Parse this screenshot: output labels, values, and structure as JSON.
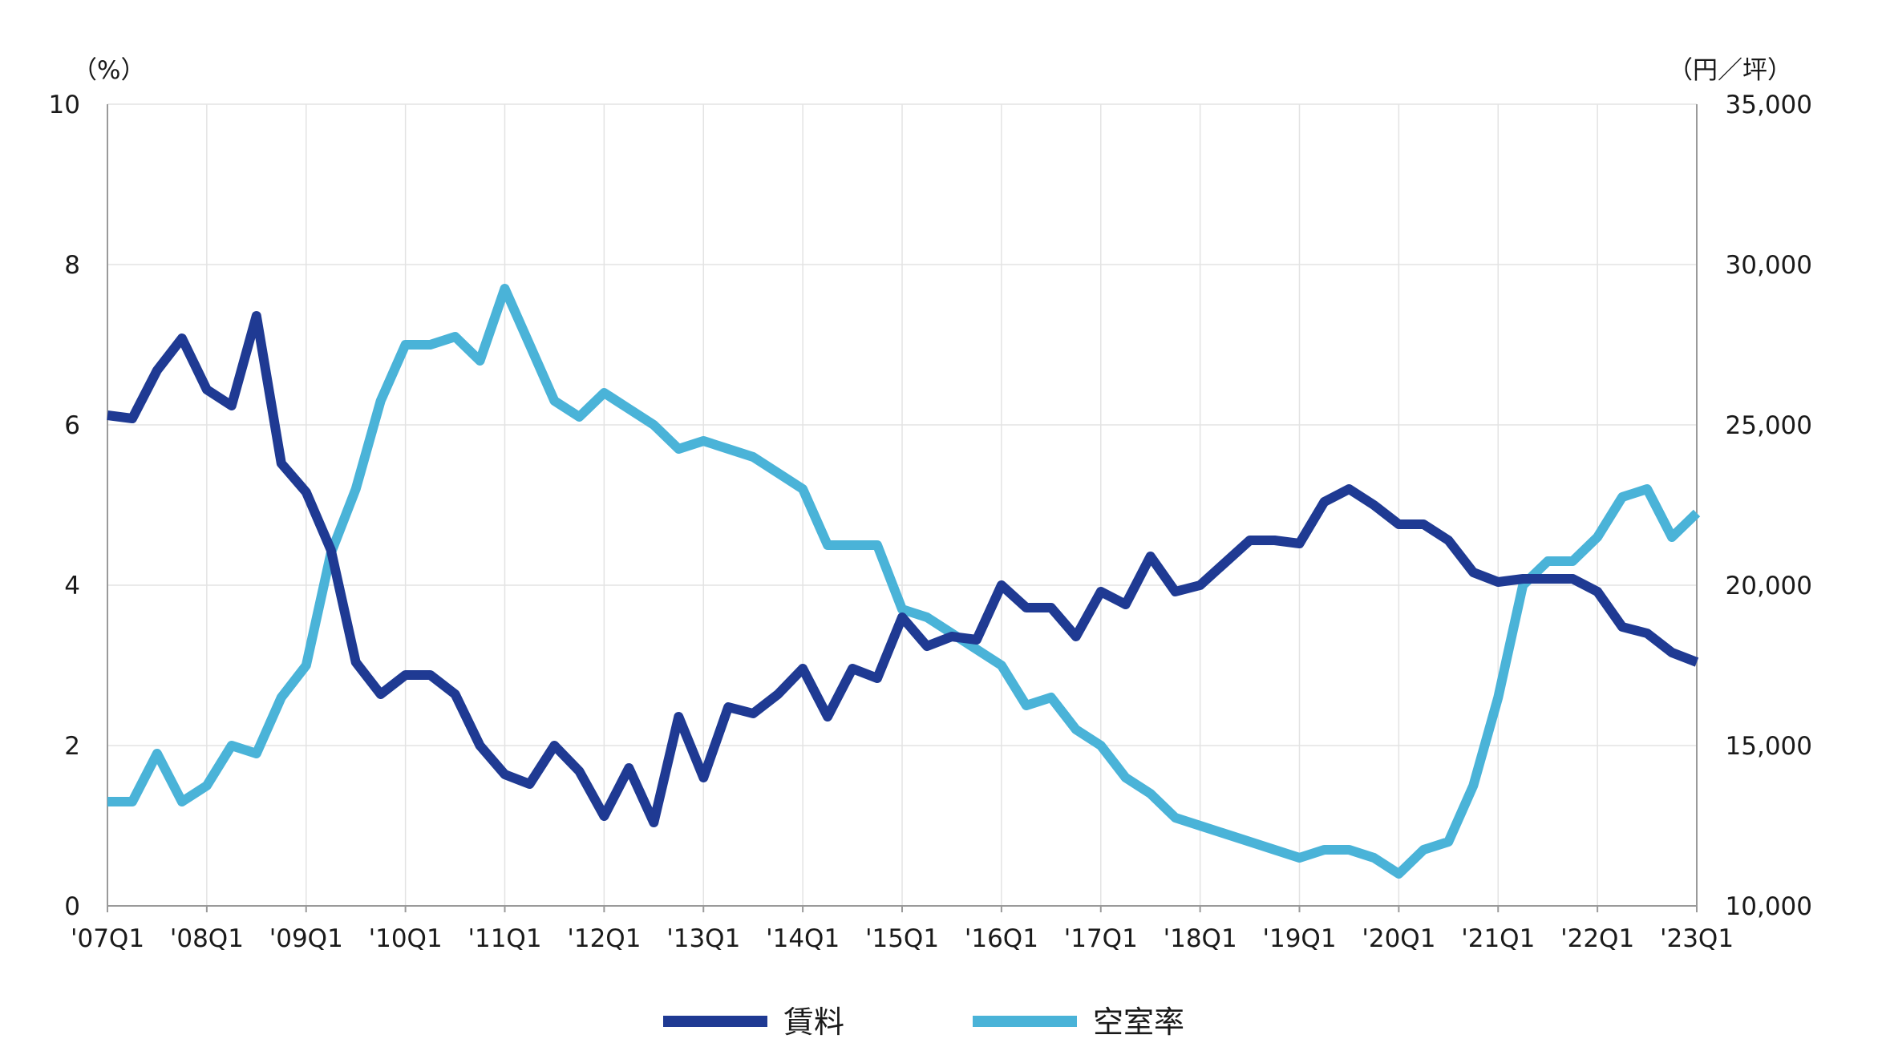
{
  "chart_data": {
    "type": "line",
    "x": [
      "'07Q1",
      "'07Q2",
      "'07Q3",
      "'07Q4",
      "'08Q1",
      "'08Q2",
      "'08Q3",
      "'08Q4",
      "'09Q1",
      "'09Q2",
      "'09Q3",
      "'09Q4",
      "'10Q1",
      "'10Q2",
      "'10Q3",
      "'10Q4",
      "'11Q1",
      "'11Q2",
      "'11Q3",
      "'11Q4",
      "'12Q1",
      "'12Q2",
      "'12Q3",
      "'12Q4",
      "'13Q1",
      "'13Q2",
      "'13Q3",
      "'13Q4",
      "'14Q1",
      "'14Q2",
      "'14Q3",
      "'14Q4",
      "'15Q1",
      "'15Q2",
      "'15Q3",
      "'15Q4",
      "'16Q1",
      "'16Q2",
      "'16Q3",
      "'16Q4",
      "'17Q1",
      "'17Q2",
      "'17Q3",
      "'17Q4",
      "'18Q1",
      "'18Q2",
      "'18Q3",
      "'18Q4",
      "'19Q1",
      "'19Q2",
      "'19Q3",
      "'19Q4",
      "'20Q1",
      "'20Q2",
      "'20Q3",
      "'20Q4",
      "'21Q1",
      "'21Q2",
      "'21Q3",
      "'21Q4",
      "'22Q1",
      "'22Q2",
      "'22Q3",
      "'22Q4",
      "'23Q1"
    ],
    "x_tick_labels": [
      "'07Q1",
      "'08Q1",
      "'09Q1",
      "'10Q1",
      "'11Q1",
      "'12Q1",
      "'13Q1",
      "'14Q1",
      "'15Q1",
      "'16Q1",
      "'17Q1",
      "'18Q1",
      "'19Q1",
      "'20Q1",
      "'21Q1",
      "'22Q1",
      "'23Q1"
    ],
    "y_left": {
      "unit": "（%）",
      "ylim": [
        0,
        10
      ],
      "ticks": [
        "0",
        "2",
        "4",
        "6",
        "8",
        "10"
      ]
    },
    "y_right": {
      "unit": "（円／坪）",
      "ylim": [
        10000,
        35000
      ],
      "ticks": [
        "10,000",
        "15,000",
        "20,000",
        "25,000",
        "30,000",
        "35,000"
      ]
    },
    "grid": true,
    "legend_position": "bottom",
    "series": [
      {
        "name": "賃料",
        "axis": "right",
        "color": "#1f3a93",
        "values": [
          25300,
          25200,
          26700,
          27700,
          26100,
          25600,
          28400,
          23800,
          22900,
          21100,
          17600,
          16600,
          17200,
          17200,
          16600,
          15000,
          14100,
          13800,
          15000,
          14200,
          12800,
          14300,
          12600,
          15900,
          14000,
          16200,
          16000,
          16600,
          17400,
          15900,
          17400,
          17100,
          19000,
          18100,
          18400,
          18300,
          20000,
          19300,
          19300,
          18400,
          19800,
          19400,
          20900,
          19800,
          20000,
          20700,
          21400,
          21400,
          21300,
          22600,
          23000,
          22500,
          21900,
          21900,
          21400,
          20400,
          20100,
          20200,
          20200,
          20200,
          19800,
          18700,
          18500,
          17900,
          17600
        ]
      },
      {
        "name": "空室率",
        "axis": "left",
        "color": "#4ab3d8",
        "values": [
          1.3,
          1.3,
          1.9,
          1.3,
          1.5,
          2.0,
          1.9,
          2.6,
          3.0,
          4.4,
          5.2,
          6.3,
          7.0,
          7.0,
          7.1,
          6.8,
          7.7,
          7.0,
          6.3,
          6.1,
          6.4,
          6.2,
          6.0,
          5.7,
          5.8,
          5.7,
          5.6,
          5.4,
          5.2,
          4.5,
          4.5,
          4.5,
          3.7,
          3.6,
          3.4,
          3.2,
          3.0,
          2.5,
          2.6,
          2.2,
          2.0,
          1.6,
          1.4,
          1.1,
          1.0,
          0.9,
          0.8,
          0.7,
          0.6,
          0.7,
          0.7,
          0.6,
          0.4,
          0.7,
          0.8,
          1.5,
          2.6,
          4.0,
          4.3,
          4.3,
          4.6,
          5.1,
          5.2,
          4.6,
          4.9
        ]
      }
    ]
  }
}
